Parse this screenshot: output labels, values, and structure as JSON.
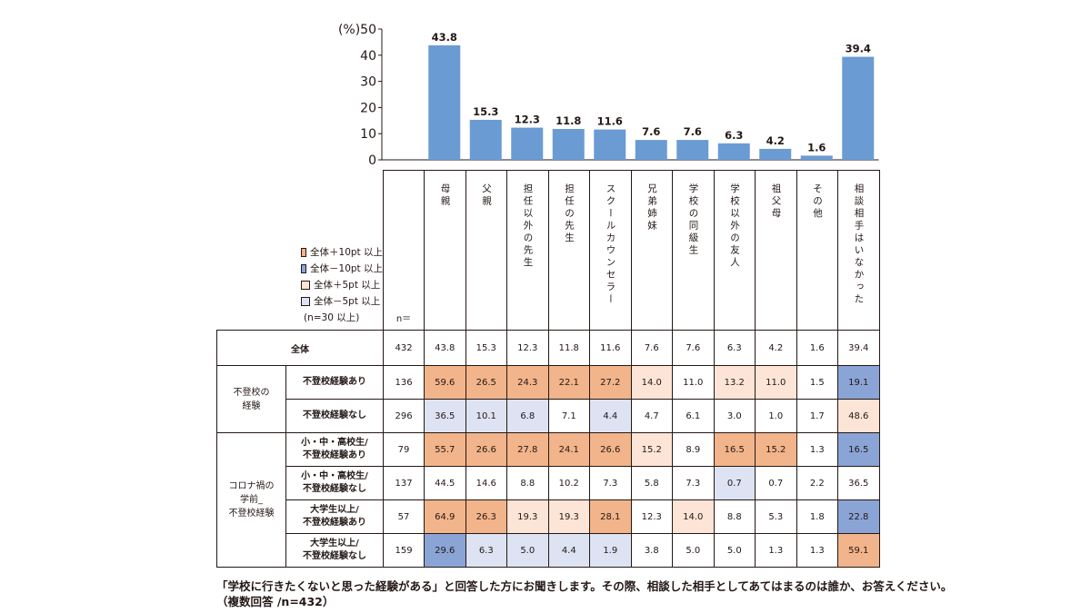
{
  "chart_data": {
    "type": "bar",
    "categories": [
      "母親",
      "父親",
      "担任以外の先生",
      "担任の先生",
      "スクールカウンセラー",
      "兄弟姉妹",
      "学校の同級生",
      "学校以外の友人",
      "祖父母",
      "その他",
      "相談相手はいなかった"
    ],
    "values": [
      43.8,
      15.3,
      12.3,
      11.8,
      11.6,
      7.6,
      7.6,
      6.3,
      4.2,
      1.6,
      39.4
    ],
    "value_labels": [
      "43.8",
      "15.3",
      "12.3",
      "11.8",
      "11.6",
      "7.6",
      "7.6",
      "6.3",
      "4.2",
      "1.6",
      "39.4"
    ],
    "ylim": [
      0,
      50
    ],
    "yticks": [
      0,
      10,
      20,
      30,
      40,
      50
    ],
    "ytick_labels": [
      "0",
      "10",
      "20",
      "30",
      "40",
      "(%)50"
    ],
    "bar_color": "#6a9bd3",
    "grid": false
  },
  "legend": {
    "items": [
      {
        "label": "全体＋10pt 以上",
        "color": "#f2b48a"
      },
      {
        "label": "全体－10pt 以上",
        "color": "#8aa4d6"
      },
      {
        "label": "全体＋5pt 以上",
        "color": "#fce4d6"
      },
      {
        "label": "全体－5pt 以上",
        "color": "#dde3f2"
      }
    ],
    "note": "(n=30 以上)"
  },
  "table": {
    "n_header": "n＝",
    "groups": [
      {
        "label": "",
        "rows": [
          {
            "label": "全体",
            "n": "432",
            "values": [
              "43.8",
              "15.3",
              "12.3",
              "11.8",
              "11.6",
              "7.6",
              "7.6",
              "6.3",
              "4.2",
              "1.6",
              "39.4"
            ],
            "colors": [
              "",
              "",
              "",
              "",
              "",
              "",
              "",
              "",
              "",
              "",
              ""
            ]
          }
        ]
      },
      {
        "label": "不登校の\n経験",
        "rows": [
          {
            "label": "不登校経験あり",
            "n": "136",
            "values": [
              "59.6",
              "26.5",
              "24.3",
              "22.1",
              "27.2",
              "14.0",
              "11.0",
              "13.2",
              "11.0",
              "1.5",
              "19.1"
            ],
            "colors": [
              "hi10",
              "hi10",
              "hi10",
              "hi10",
              "hi10",
              "hi5",
              "",
              "hi5",
              "hi5",
              "",
              "lo10"
            ]
          },
          {
            "label": "不登校経験なし",
            "n": "296",
            "values": [
              "36.5",
              "10.1",
              "6.8",
              "7.1",
              "4.4",
              "4.7",
              "6.1",
              "3.0",
              "1.0",
              "1.7",
              "48.6"
            ],
            "colors": [
              "lo5",
              "lo5",
              "lo5",
              "",
              "lo5",
              "",
              "",
              "",
              "",
              "",
              "hi5"
            ]
          }
        ]
      },
      {
        "label": "コロナ禍の\n学前_\n不登校経験",
        "rows": [
          {
            "label": "小・中・高校生/\n不登校経験あり",
            "n": "79",
            "values": [
              "55.7",
              "26.6",
              "27.8",
              "24.1",
              "26.6",
              "15.2",
              "8.9",
              "16.5",
              "15.2",
              "1.3",
              "16.5"
            ],
            "colors": [
              "hi10",
              "hi10",
              "hi10",
              "hi10",
              "hi10",
              "hi5",
              "",
              "hi10",
              "hi10",
              "",
              "lo10"
            ]
          },
          {
            "label": "小・中・高校生/\n不登校経験なし",
            "n": "137",
            "values": [
              "44.5",
              "14.6",
              "8.8",
              "10.2",
              "7.3",
              "5.8",
              "7.3",
              "0.7",
              "0.7",
              "2.2",
              "36.5"
            ],
            "colors": [
              "",
              "",
              "",
              "",
              "",
              "",
              "",
              "lo5",
              "",
              "",
              ""
            ]
          },
          {
            "label": "大学生以上/\n不登校経験あり",
            "n": "57",
            "values": [
              "64.9",
              "26.3",
              "19.3",
              "19.3",
              "28.1",
              "12.3",
              "14.0",
              "8.8",
              "5.3",
              "1.8",
              "22.8"
            ],
            "colors": [
              "hi10",
              "hi10",
              "hi5",
              "hi5",
              "hi10",
              "",
              "hi5",
              "",
              "",
              "",
              "lo10"
            ]
          },
          {
            "label": "大学生以上/\n不登校経験なし",
            "n": "159",
            "values": [
              "29.6",
              "6.3",
              "5.0",
              "4.4",
              "1.9",
              "3.8",
              "5.0",
              "5.0",
              "1.3",
              "1.3",
              "59.1"
            ],
            "colors": [
              "lo10",
              "lo5",
              "lo5",
              "lo5",
              "lo5",
              "",
              "",
              "",
              "",
              "",
              "hi10"
            ]
          }
        ]
      }
    ]
  },
  "footnote": "「学校に行きたくないと思った経験がある」と回答した方にお聞きします。その際、相談した相手としてあてはまるのは誰か、お答えください。\n（複数回答 /n=432）"
}
